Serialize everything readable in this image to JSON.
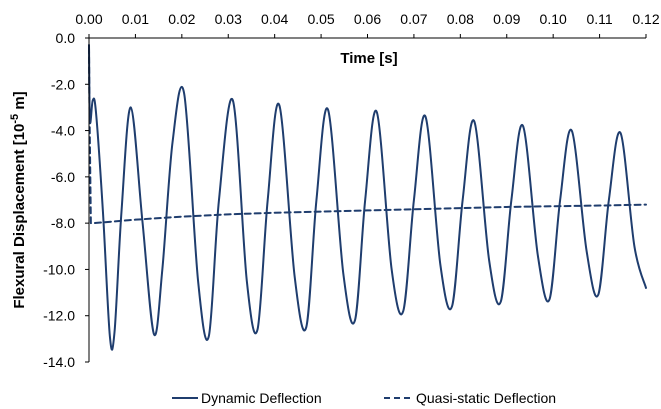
{
  "chart_data": {
    "type": "line",
    "xlabel": "Time [s]",
    "ylabel": "Flexural Displacement [10",
    "ylabel_sup": "-5",
    "ylabel_tail": " m]",
    "xlim": [
      0.0,
      0.12
    ],
    "ylim": [
      -14.0,
      0.0
    ],
    "x_ticks": [
      "0.00",
      "0.01",
      "0.02",
      "0.03",
      "0.04",
      "0.05",
      "0.06",
      "0.07",
      "0.08",
      "0.09",
      "0.10",
      "0.11",
      "0.12"
    ],
    "y_ticks": [
      "0.0",
      "-2.0",
      "-4.0",
      "-6.0",
      "-8.0",
      "-10.0",
      "-12.0",
      "-14.0"
    ],
    "x_axis_position": "top",
    "grid": false,
    "legend_position": "bottom",
    "series": [
      {
        "name": "Dynamic Deflection",
        "style": "solid",
        "color": "#1f3d6e",
        "x": [
          0.0,
          0.0002,
          0.0008,
          0.0015,
          0.003,
          0.0045,
          0.0055,
          0.007,
          0.009,
          0.0115,
          0.014,
          0.0158,
          0.018,
          0.0205,
          0.0235,
          0.0258,
          0.028,
          0.031,
          0.034,
          0.0363,
          0.0385,
          0.041,
          0.0443,
          0.0468,
          0.049,
          0.0515,
          0.0548,
          0.0573,
          0.0595,
          0.062,
          0.0652,
          0.0677,
          0.07,
          0.0725,
          0.0757,
          0.0782,
          0.0805,
          0.083,
          0.0862,
          0.0887,
          0.091,
          0.0935,
          0.0967,
          0.0992,
          0.1015,
          0.104,
          0.1072,
          0.1097,
          0.112,
          0.1145,
          0.1175,
          0.12
        ],
        "y": [
          -0.3,
          -3.6,
          -2.7,
          -3.2,
          -7.5,
          -12.9,
          -12.7,
          -7.5,
          -3.0,
          -7.9,
          -12.8,
          -10.0,
          -4.5,
          -2.4,
          -10.5,
          -12.9,
          -7.0,
          -2.7,
          -10.5,
          -12.6,
          -7.0,
          -2.9,
          -10.3,
          -12.5,
          -7.0,
          -3.1,
          -10.2,
          -12.2,
          -7.0,
          -3.2,
          -10.0,
          -11.8,
          -7.0,
          -3.4,
          -9.8,
          -11.6,
          -7.0,
          -3.6,
          -9.6,
          -11.4,
          -7.0,
          -3.8,
          -9.4,
          -11.3,
          -7.0,
          -4.0,
          -9.2,
          -11.1,
          -7.0,
          -4.1,
          -9.0,
          -10.8
        ]
      },
      {
        "name": "Quasi-static Deflection",
        "style": "dashed",
        "color": "#1f3d6e",
        "x": [
          0.0,
          0.0001,
          0.0004,
          0.001,
          0.01,
          0.02,
          0.03,
          0.04,
          0.05,
          0.06,
          0.07,
          0.08,
          0.09,
          0.1,
          0.11,
          0.12
        ],
        "y": [
          -0.4,
          -3.0,
          -8.0,
          -8.0,
          -7.85,
          -7.72,
          -7.62,
          -7.55,
          -7.5,
          -7.45,
          -7.4,
          -7.35,
          -7.3,
          -7.27,
          -7.24,
          -7.2
        ]
      }
    ]
  }
}
